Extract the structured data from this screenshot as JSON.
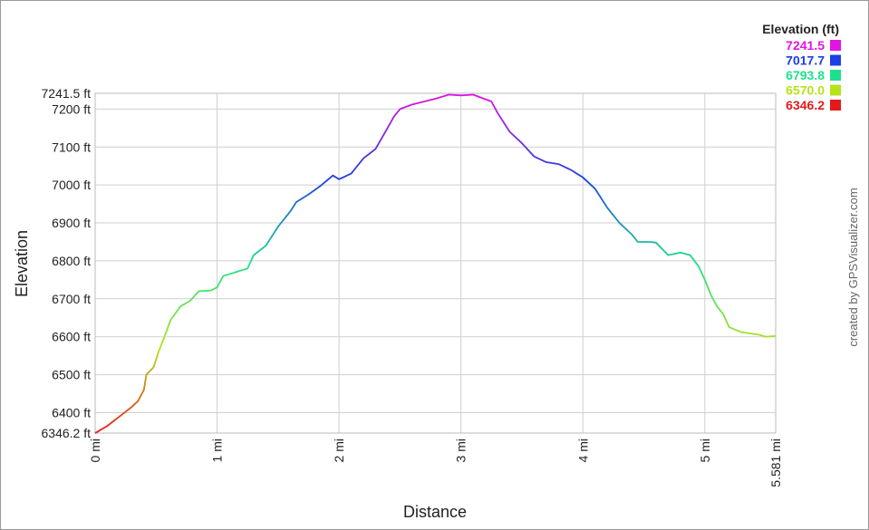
{
  "chart_data": {
    "type": "line",
    "y_label": "Elevation",
    "x_label": "Distance",
    "credit": "created by GPSVisualizer.com",
    "legend": {
      "title": "Elevation (ft)",
      "entries": [
        {
          "value": 7241.5,
          "color": "#e214e2"
        },
        {
          "value": 7017.7,
          "color": "#1c3fe6"
        },
        {
          "value": 6793.8,
          "color": "#1ee08c"
        },
        {
          "value": {
            "value": 6570.0,
            "label": "6570.0"
          },
          "color": "#b6e21a"
        },
        {
          "value": 6346.2,
          "color": "#e41a1a"
        }
      ]
    },
    "xlim": [
      0,
      5.581
    ],
    "ylim": [
      6346.2,
      7241.5
    ],
    "xticks": [
      {
        "value": 0,
        "label": "0 mi"
      },
      {
        "value": 1,
        "label": "1 mi"
      },
      {
        "value": 2,
        "label": "2 mi"
      },
      {
        "value": 3,
        "label": "3 mi"
      },
      {
        "value": 4,
        "label": "4 mi"
      },
      {
        "value": 5,
        "label": "5 mi"
      },
      {
        "value": 5.581,
        "label": "5.581 mi"
      }
    ],
    "yticks": [
      {
        "value": 6346.2,
        "label": "6346.2 ft"
      },
      {
        "value": 6400,
        "label": "6400 ft"
      },
      {
        "value": 6500,
        "label": "6500 ft"
      },
      {
        "value": 6600,
        "label": "6600 ft"
      },
      {
        "value": 6700,
        "label": "6700 ft"
      },
      {
        "value": 6800,
        "label": "6800 ft"
      },
      {
        "value": 6900,
        "label": "6900 ft"
      },
      {
        "value": 7000,
        "label": "7000 ft"
      },
      {
        "value": 7100,
        "label": "7100 ft"
      },
      {
        "value": 7200,
        "label": "7200 ft"
      },
      {
        "value": 7241.5,
        "label": "7241.5 ft"
      }
    ],
    "grid": true,
    "x": [
      0,
      0.1,
      0.2,
      0.3,
      0.35,
      0.4,
      0.42,
      0.48,
      0.52,
      0.58,
      0.62,
      0.7,
      0.78,
      0.85,
      0.95,
      1.0,
      1.05,
      1.15,
      1.25,
      1.3,
      1.4,
      1.5,
      1.6,
      1.65,
      1.75,
      1.85,
      1.95,
      2.0,
      2.1,
      2.2,
      2.3,
      2.38,
      2.45,
      2.5,
      2.6,
      2.7,
      2.8,
      2.9,
      3.0,
      3.1,
      3.15,
      3.25,
      3.3,
      3.4,
      3.5,
      3.6,
      3.7,
      3.8,
      3.9,
      4.0,
      4.1,
      4.2,
      4.3,
      4.4,
      4.45,
      4.55,
      4.6,
      4.7,
      4.8,
      4.88,
      4.95,
      5.0,
      5.05,
      5.1,
      5.15,
      5.2,
      5.3,
      5.45,
      5.5,
      5.581
    ],
    "series": [
      {
        "values": [
          6346,
          6365,
          6390,
          6415,
          6430,
          6460,
          6500,
          6520,
          6560,
          6610,
          6645,
          6680,
          6695,
          6720,
          6722,
          6730,
          6760,
          6770,
          6780,
          6815,
          6840,
          6890,
          6930,
          6955,
          6975,
          6998,
          7025,
          7015,
          7030,
          7070,
          7095,
          7140,
          7180,
          7200,
          7212,
          7220,
          7228,
          7238,
          7236,
          7238,
          7232,
          7220,
          7190,
          7140,
          7110,
          7075,
          7060,
          7055,
          7040,
          7020,
          6990,
          6940,
          6900,
          6870,
          6850,
          6850,
          6848,
          6815,
          6822,
          6815,
          6785,
          6750,
          6710,
          6680,
          6660,
          6625,
          6612,
          6605,
          6600,
          6602
        ]
      }
    ]
  }
}
